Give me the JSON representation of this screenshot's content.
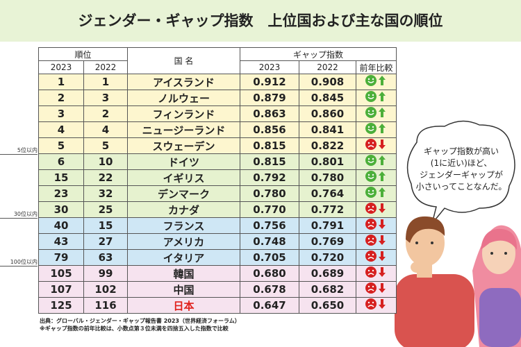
{
  "title": "ジェンダー・ギャップ指数　上位国および主な国の順位",
  "header": {
    "rank_label": "順位",
    "rank_years": [
      "2023",
      "2022"
    ],
    "name_label": "国 名",
    "index_label": "ギャップ指数",
    "index_years": [
      "2023",
      "2022"
    ],
    "compare_label": "前年比較"
  },
  "rows": [
    [
      1,
      1,
      "アイスランド",
      "0.912",
      "0.908"
    ],
    [
      2,
      3,
      "ノルウェー",
      "0.879",
      "0.845"
    ],
    [
      3,
      2,
      "フィンランド",
      "0.863",
      "0.860"
    ],
    [
      4,
      4,
      "ニュージーランド",
      "0.856",
      "0.841"
    ],
    [
      5,
      5,
      "スウェーデン",
      "0.815",
      "0.822"
    ],
    [
      6,
      10,
      "ドイツ",
      "0.815",
      "0.801"
    ],
    [
      15,
      22,
      "イギリス",
      "0.792",
      "0.780"
    ],
    [
      23,
      32,
      "デンマーク",
      "0.780",
      "0.764"
    ],
    [
      30,
      25,
      "カナダ",
      "0.770",
      "0.772"
    ],
    [
      40,
      15,
      "フランス",
      "0.756",
      "0.791"
    ],
    [
      43,
      27,
      "アメリカ",
      "0.748",
      "0.769"
    ],
    [
      79,
      63,
      "イタリア",
      "0.705",
      "0.720"
    ],
    [
      105,
      99,
      "韓国",
      "0.680",
      "0.689"
    ],
    [
      107,
      102,
      "中国",
      "0.678",
      "0.682"
    ],
    [
      125,
      116,
      "日本",
      "0.647",
      "0.650"
    ]
  ],
  "highlight_row": 14,
  "groups": [
    {
      "label": "5位以内",
      "rows": 5,
      "color": "#fdf6cf"
    },
    {
      "label": "30位以内",
      "rows": 4,
      "color": "#e6f2cf"
    },
    {
      "label": "100位以内",
      "rows": 3,
      "color": "#cfe7f5"
    },
    {
      "rows": 3,
      "color": "#f6e3ef"
    }
  ],
  "bubble": [
    "ギャップ指数が高い",
    "(1に近い)ほど、",
    "ジェンダーギャップが",
    "小さいってことなんだ。"
  ],
  "notes": [
    "出典：グローバル・ジェンダー・ギャップ報告書 2023（世界経済フォーラム）",
    "※ギャップ指数の前年比較は、小数点第３位未満を四捨五入した指数で比較"
  ]
}
